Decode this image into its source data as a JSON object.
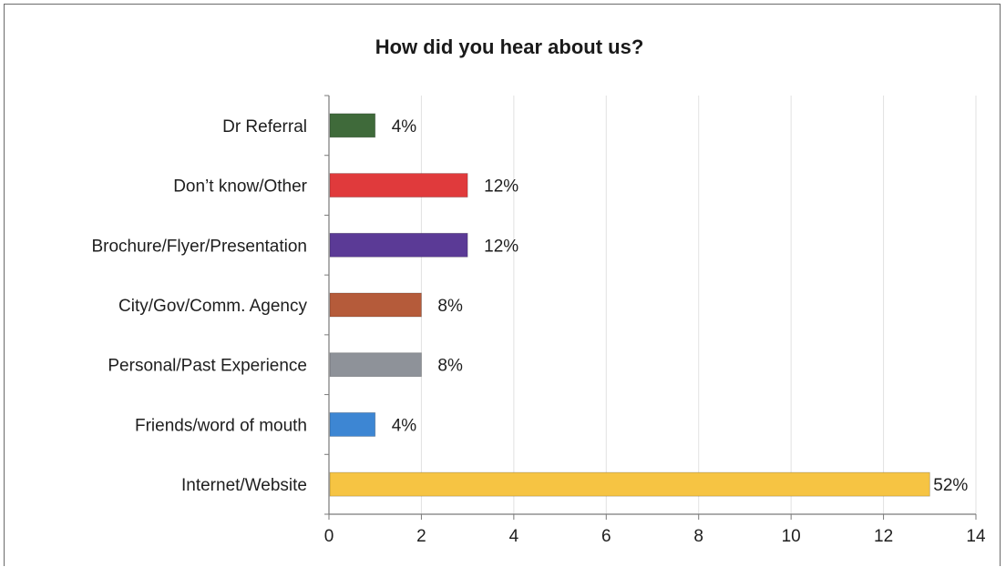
{
  "chart_data": {
    "type": "bar",
    "orientation": "horizontal",
    "title": "How did you hear about us?",
    "xlabel": "",
    "ylabel": "",
    "xlim": [
      0,
      14
    ],
    "x_ticks": [
      0,
      2,
      4,
      6,
      8,
      10,
      12,
      14
    ],
    "grid": "vertical",
    "legend": "none",
    "categories": [
      "Dr Referral",
      "Don’t know/Other",
      "Brochure/Flyer/Presentation",
      "City/Gov/Comm. Agency",
      "Personal/Past Experience",
      "Friends/word of mouth",
      "Internet/Website"
    ],
    "values": [
      1,
      3,
      3,
      2,
      2,
      1,
      13
    ],
    "data_labels": [
      "4%",
      "12%",
      "12%",
      "8%",
      "8%",
      "4%",
      "52%"
    ],
    "colors": [
      "#3f6a3a",
      "#e03a3c",
      "#5b3a96",
      "#b55b3a",
      "#8e9299",
      "#3d86d3",
      "#f6c443"
    ]
  }
}
